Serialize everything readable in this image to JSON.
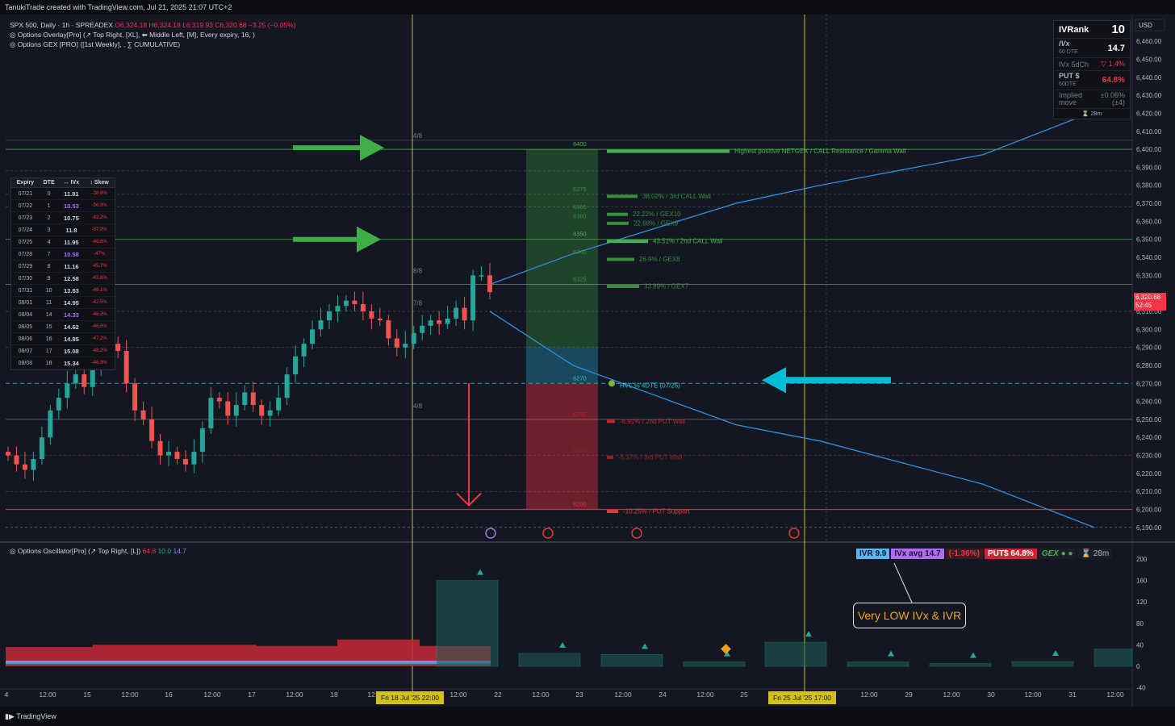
{
  "header": {
    "top": "TanukiTrade created with TradingView.com, Jul 21, 2025 21:07 UTC+2",
    "symbol_line": "SPX 500, Daily · 1h · SPREADEX",
    "ohlc_o": "O6,324.18",
    "ohlc_h": "H6,324.18",
    "ohlc_l": "L6,319.93",
    "ohlc_c": "C6,320.68",
    "ohlc_chg": "−3.25 (−0.05%)",
    "ind1": "Options Overlay[Pro] (↗ Top Right, [XL], ⬅ Middle Left, [M], Every expiry, 16, )",
    "ind2": "Options GEX [PRO] ([1st Weekly], , ∑ CUMULATIVE)"
  },
  "footer": {
    "brand": "TradingView"
  },
  "currency": "USD",
  "ivpanel": {
    "ivrank_label": "IVRank",
    "ivrank_value": "10",
    "ivx_label": "IVx",
    "ivx_sub": "60 DTE",
    "ivx_value": "14.7",
    "ivx5_label": "IVx 5dCh",
    "ivx5_value": "▽ 1.4%",
    "put_label": "PUT $",
    "put_sub": "60DTE",
    "put_value": "64.8%",
    "implied_label": "Implied",
    "implied_label2": "move",
    "implied_value": "±0.06%",
    "implied_value2": "(±4)",
    "footer": "⌛ 28m"
  },
  "expiry_table": {
    "headers": [
      "Expiry",
      "DTE",
      "↔ IVx",
      "↕ Skew"
    ],
    "rows": [
      [
        "07/21",
        "0",
        "11.81",
        "-38.8%"
      ],
      [
        "07/22",
        "1",
        "10.53",
        "-56.9%"
      ],
      [
        "07/23",
        "2",
        "10.75",
        "-63.2%"
      ],
      [
        "07/24",
        "3",
        "11.8",
        "-57.9%"
      ],
      [
        "07/25",
        "4",
        "11.95",
        "-46.6%"
      ],
      [
        "07/28",
        "7",
        "10.58",
        "-47%"
      ],
      [
        "07/29",
        "8",
        "11.16",
        "-45.7%"
      ],
      [
        "07/30",
        "9",
        "12.58",
        "-43.6%"
      ],
      [
        "07/31",
        "10",
        "13.83",
        "-46.1%"
      ],
      [
        "08/01",
        "11",
        "14.95",
        "-42.5%"
      ],
      [
        "08/04",
        "14",
        "14.33",
        "-46.2%"
      ],
      [
        "08/05",
        "15",
        "14.62",
        "-46.6%"
      ],
      [
        "08/06",
        "16",
        "14.85",
        "-47.2%"
      ],
      [
        "08/07",
        "17",
        "15.08",
        "-48.2%"
      ],
      [
        "08/08",
        "18",
        "15.34",
        "-46.9%"
      ]
    ]
  },
  "levels": [
    {
      "strike": "6400",
      "label": "Highest positive NETGEX / CALL Resistance / Gamma Wall",
      "color": "#4caf50"
    },
    {
      "strike": "6375",
      "label": "38.02% / 3rd CALL Wall",
      "color": "#388e3c"
    },
    {
      "strike": "6365",
      "label": "22.22% / GEX10",
      "color": "#388e3c"
    },
    {
      "strike": "6360",
      "label": "22.68% / GEX9",
      "color": "#388e3c"
    },
    {
      "strike": "6350",
      "label": "43.51% / 2nd CALL Wall",
      "color": "#4caf50"
    },
    {
      "strike": "6340",
      "label": "26.9% / GEX8",
      "color": "#388e3c"
    },
    {
      "strike": "6325",
      "label": "33.89% / GEX7",
      "color": "#388e3c"
    },
    {
      "strike": "6270",
      "label": "HVL % 4DTE (07/25)",
      "color": "#26c6da"
    },
    {
      "strike": "6250",
      "label": "-6.91% / 2nd PUT Wall",
      "color": "#c62828"
    },
    {
      "strike": "6230",
      "label": "-5.37% / 3rd PUT Wall",
      "color": "#8e2424"
    },
    {
      "strike": "6200",
      "label": "-10.25% / PUT Support",
      "color": "#e53935"
    }
  ],
  "murrey": [
    "4/8",
    "8/8",
    "7/8",
    "4/8"
  ],
  "price_axis": [
    "6,460.00",
    "6,450.00",
    "6,440.00",
    "6,430.00",
    "6,420.00",
    "6,410.00",
    "6,400.00",
    "6,390.00",
    "6,380.00",
    "6,370.00",
    "6,360.00",
    "6,350.00",
    "6,340.00",
    "6,330.00",
    "6,310.00",
    "6,300.00",
    "6,290.00",
    "6,280.00",
    "6,270.00",
    "6,260.00",
    "6,250.00",
    "6,240.00",
    "6,230.00",
    "6,220.00",
    "6,210.00",
    "6,200.00",
    "6,190.00"
  ],
  "price_label": {
    "value": "6,320.68",
    "timer": "52:45"
  },
  "time_axis": [
    "4",
    "12:00",
    "15",
    "12:00",
    "16",
    "12:00",
    "17",
    "12:00",
    "18",
    "12:00",
    "12:00",
    "22",
    "12:00",
    "23",
    "12:00",
    "24",
    "12:00",
    "25",
    "12:00",
    "29",
    "12:00",
    "30",
    "12:00",
    "31",
    "12:00"
  ],
  "date_labels": [
    "Fri 18 Jul '25   22:00",
    "Fri 25 Jul '25   17:00"
  ],
  "oscillator": {
    "header": "Options Oscillator[Pro] (↗ Top Right, [L])",
    "v1": "64.8",
    "v2": "10.0",
    "v3": "14.7",
    "axis": [
      "200",
      "160",
      "120",
      "80",
      "40",
      "0",
      "-40"
    ],
    "pills": {
      "ivr": "IVR 9.9",
      "ivxavg": "IVx avg 14.7",
      "chg": "(-1.36%)",
      "put": "PUT$ 64.8%",
      "gex": "GEX",
      "timer": "⌛ 28m"
    },
    "callout": "Very LOW IVx & IVR"
  },
  "chart_data": {
    "type": "candlestick",
    "symbol": "SPX 500",
    "timeframe": "1h",
    "ohlc_last": {
      "open": 6324.18,
      "high": 6324.18,
      "low": 6319.93,
      "close": 6320.68
    },
    "ylim": [
      6185,
      6465
    ],
    "close_path": [
      6230,
      6225,
      6222,
      6228,
      6240,
      6255,
      6262,
      6270,
      6275,
      6268,
      6280,
      6290,
      6292,
      6288,
      6270,
      6255,
      6250,
      6238,
      6230,
      6232,
      6228,
      6225,
      6232,
      6245,
      6262,
      6260,
      6252,
      6258,
      6265,
      6258,
      6252,
      6255,
      6262,
      6275,
      6285,
      6292,
      6300,
      6305,
      6310,
      6313,
      6316,
      6314,
      6310,
      6306,
      6305,
      6295,
      6290,
      6292,
      6298,
      6302,
      6305,
      6303,
      6306,
      6312,
      6305,
      6330,
      6330,
      6320.68
    ],
    "levels": [
      6400,
      6375,
      6365,
      6360,
      6350,
      6340,
      6325,
      6270,
      6250,
      6230,
      6200
    ],
    "hvl": 6270,
    "call_zone": [
      6290,
      6400
    ],
    "put_zone": [
      6200,
      6270
    ],
    "expected_move_upper": [
      [
        6325,
        "Jul 21"
      ],
      [
        6350,
        "Jul 22"
      ],
      [
        6370,
        "Jul 24"
      ],
      [
        6390,
        "Jul 28"
      ],
      [
        6400,
        "Jul 30"
      ],
      [
        6416,
        "Jul 31"
      ]
    ],
    "expected_move_lower": [
      [
        6310,
        "Jul 21"
      ],
      [
        6280,
        "Jul 22"
      ],
      [
        6248,
        "Jul 24"
      ],
      [
        6238,
        "Jul 25"
      ],
      [
        6212,
        "Jul 30"
      ],
      [
        6188,
        "Jul 31"
      ]
    ],
    "oscillator_bars": [
      160,
      10,
      8,
      3,
      30,
      3,
      2,
      4,
      3,
      25
    ]
  }
}
